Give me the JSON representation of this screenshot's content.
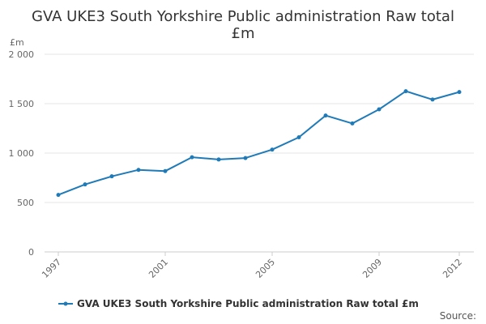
{
  "chart_data": {
    "type": "line",
    "title": "GVA UKE3 South Yorkshire Public administration Raw total £m",
    "title_lines": [
      "GVA UKE3 South Yorkshire Public administration Raw total",
      "£m"
    ],
    "ylabel": "£m",
    "xlabel": "",
    "ylim": [
      0,
      2000
    ],
    "xlim": [
      1997,
      2012
    ],
    "y_ticks": [
      {
        "value": 0,
        "label": "0"
      },
      {
        "value": 500,
        "label": "500"
      },
      {
        "value": 1000,
        "label": "1 000"
      },
      {
        "value": 1500,
        "label": "1 500"
      },
      {
        "value": 2000,
        "label": "2 000"
      }
    ],
    "x_ticks": [
      {
        "value": 1997,
        "label": "1997"
      },
      {
        "value": 2001,
        "label": "2001"
      },
      {
        "value": 2005,
        "label": "2005"
      },
      {
        "value": 2009,
        "label": "2009"
      },
      {
        "value": 2012,
        "label": "2012"
      }
    ],
    "grid": true,
    "legend": "bottom",
    "series": [
      {
        "name": "GVA UKE3 South Yorkshire Public administration Raw total £m",
        "color": "#1f7ab8",
        "x": [
          1997,
          1998,
          1999,
          2000,
          2001,
          2002,
          2003,
          2004,
          2005,
          2006,
          2007,
          2008,
          2009,
          2010,
          2011,
          2012
        ],
        "values": [
          577,
          683,
          765,
          830,
          818,
          958,
          935,
          950,
          1035,
          1160,
          1380,
          1300,
          1443,
          1626,
          1542,
          1618
        ]
      }
    ],
    "source_label": "Source:"
  }
}
